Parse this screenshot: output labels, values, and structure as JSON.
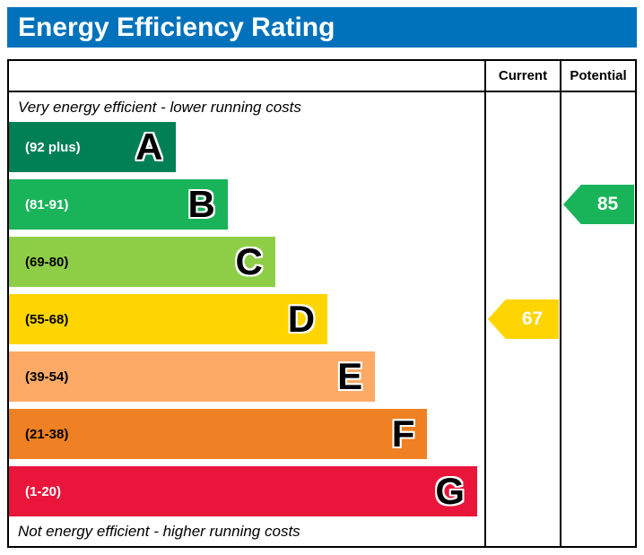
{
  "title_bar": {
    "title": "Energy Efficiency Rating",
    "background": "#0072bc"
  },
  "columns": {
    "current_label": "Current",
    "potential_label": "Potential"
  },
  "notes": {
    "top": "Very energy efficient - lower running costs",
    "bottom": "Not energy efficient - higher running costs"
  },
  "chart_data": {
    "type": "bar",
    "subtype": "uk-epc-energy-efficiency-rating",
    "title": "Energy Efficiency Rating",
    "column_headers": [
      "Current",
      "Potential"
    ],
    "top_annotation": "Very energy efficient - lower running costs",
    "bottom_annotation": "Not energy efficient - higher running costs",
    "bands": [
      {
        "letter": "A",
        "range_label": "(92 plus)",
        "color": "#008054",
        "width_pct": 35,
        "label_color": "#ffffff"
      },
      {
        "letter": "B",
        "range_label": "(81-91)",
        "color": "#19b459",
        "width_pct": 46,
        "label_color": "#ffffff"
      },
      {
        "letter": "C",
        "range_label": "(69-80)",
        "color": "#8dce46",
        "width_pct": 56,
        "label_color": "#000000"
      },
      {
        "letter": "D",
        "range_label": "(55-68)",
        "color": "#ffd500",
        "width_pct": 67,
        "label_color": "#000000"
      },
      {
        "letter": "E",
        "range_label": "(39-54)",
        "color": "#fcaa65",
        "width_pct": 77,
        "label_color": "#000000"
      },
      {
        "letter": "F",
        "range_label": "(21-38)",
        "color": "#ef8023",
        "width_pct": 88,
        "label_color": "#000000"
      },
      {
        "letter": "G",
        "range_label": "(1-20)",
        "color": "#e9153b",
        "width_pct": 98.5,
        "label_color": "#ffffff"
      }
    ],
    "current": {
      "value": 67,
      "band": "D",
      "color": "#ffd500"
    },
    "potential": {
      "value": 85,
      "band": "B",
      "color": "#19b459"
    }
  }
}
